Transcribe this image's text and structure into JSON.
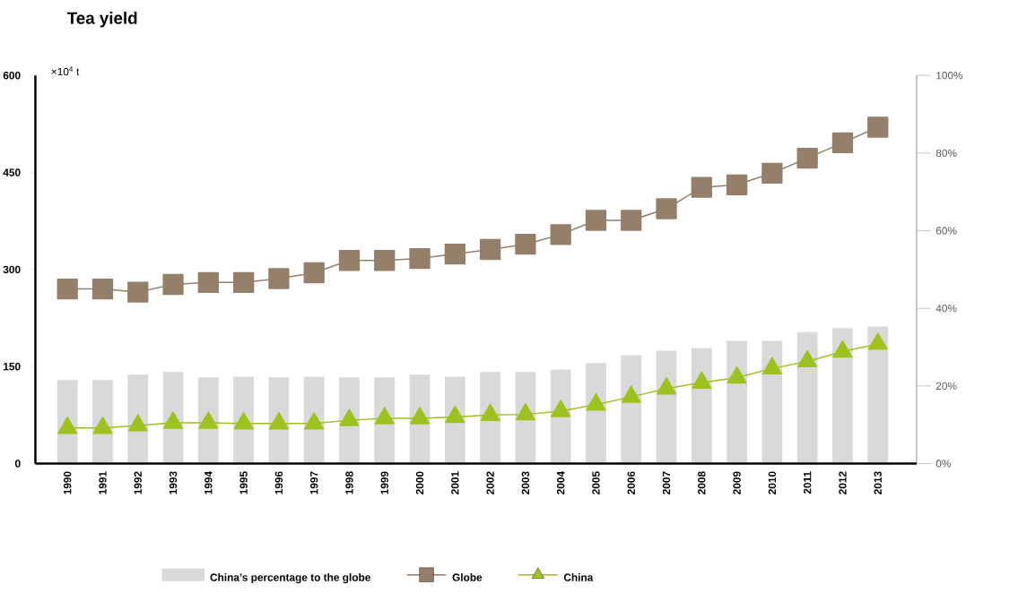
{
  "chart_data": {
    "type": "line",
    "title": "Tea yield",
    "ylabel": "×10$^{4}$ t",
    "categories": [
      "1990",
      "1991",
      "1992",
      "1993",
      "1994",
      "1995",
      "1996",
      "1997",
      "1998",
      "1999",
      "2000",
      "2001",
      "2002",
      "2003",
      "2004",
      "2005",
      "2006",
      "2007",
      "2008",
      "2009",
      "2010",
      "2011",
      "2012",
      "2013"
    ],
    "ylim": [
      0,
      600
    ],
    "yticks": [
      0,
      150,
      300,
      450,
      600
    ],
    "y2lim": [
      0,
      100
    ],
    "y2ticks": [
      {
        "value": 0,
        "label": "0%"
      },
      {
        "value": 20,
        "label": "20%"
      },
      {
        "value": 40,
        "label": "40%"
      },
      {
        "value": 60,
        "label": "60%"
      },
      {
        "value": 80,
        "label": "80%"
      },
      {
        "value": 100,
        "label": "100%"
      }
    ],
    "legend": "bottom",
    "series": [
      {
        "name": "China’s percentage to the globe",
        "type": "bar",
        "axis": "y2",
        "color": "#d9d9d9",
        "values": [
          21.5,
          21.5,
          22.9,
          23.6,
          22.2,
          22.4,
          22.2,
          22.4,
          22.2,
          22.2,
          22.9,
          22.4,
          23.6,
          23.6,
          24.2,
          25.9,
          27.9,
          29.1,
          29.8,
          31.6,
          31.6,
          33.9,
          34.9,
          35.3
        ]
      },
      {
        "name": "Globe",
        "color": "#947f6a",
        "marker": "square",
        "values": [
          270,
          270,
          265,
          277,
          280,
          280,
          286,
          295,
          314,
          314,
          317,
          324,
          331,
          339,
          354,
          376,
          376,
          394,
          427,
          431,
          449,
          472,
          496,
          520
        ]
      },
      {
        "name": "China",
        "color": "#9dc21f",
        "marker": "triangle",
        "values": [
          55,
          55,
          59,
          63,
          63,
          62,
          62,
          62,
          67,
          70,
          70,
          72,
          75,
          76,
          81,
          91,
          103,
          116,
          125,
          133,
          147,
          158,
          173,
          185
        ]
      }
    ]
  }
}
